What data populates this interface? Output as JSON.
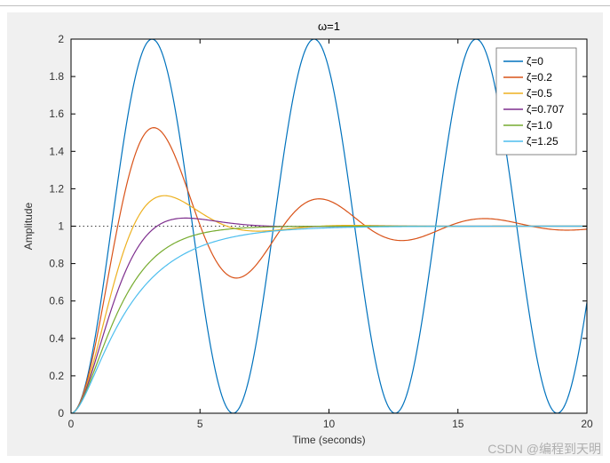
{
  "chart": {
    "type": "line",
    "title": "ω=1",
    "title_fontsize": 13,
    "xlabel": "Time (seconds)",
    "ylabel": "Amplitude",
    "label_fontsize": 12,
    "background_color": "#ffffff",
    "panel_color": "#f0f0f0",
    "axes_color": "#000000",
    "tick_fontsize": 12,
    "xlim": [
      0,
      20
    ],
    "ylim": [
      0,
      2
    ],
    "xticks": [
      0,
      5,
      10,
      15,
      20
    ],
    "yticks": [
      0,
      0.2,
      0.4,
      0.6,
      0.8,
      1,
      1.2,
      1.4,
      1.6,
      1.8,
      2
    ],
    "baseline": {
      "y": 1,
      "style": "dotted",
      "color": "#000000",
      "width": 0.7
    },
    "line_width": 1.2,
    "legend": {
      "position": "upper-right",
      "border_color": "#666666",
      "background": "#ffffff",
      "items": [
        {
          "label": "ζ=0",
          "color": "#0072bd"
        },
        {
          "label": "ζ=0.2",
          "color": "#d95319"
        },
        {
          "label": "ζ=0.5",
          "color": "#edb120"
        },
        {
          "label": "ζ=0.707",
          "color": "#7e2f8e"
        },
        {
          "label": "ζ=1.0",
          "color": "#77ac30"
        },
        {
          "label": "ζ=1.25",
          "color": "#4dbeee"
        }
      ]
    },
    "series": [
      {
        "label": "ζ=0",
        "color": "#0072bd",
        "zeta": 0.0,
        "omega": 1.0
      },
      {
        "label": "ζ=0.2",
        "color": "#d95319",
        "zeta": 0.2,
        "omega": 1.0
      },
      {
        "label": "ζ=0.5",
        "color": "#edb120",
        "zeta": 0.5,
        "omega": 1.0
      },
      {
        "label": "ζ=0.707",
        "color": "#7e2f8e",
        "zeta": 0.707,
        "omega": 1.0
      },
      {
        "label": "ζ=1.0",
        "color": "#77ac30",
        "zeta": 1.0,
        "omega": 1.0
      },
      {
        "label": "ζ=1.25",
        "color": "#4dbeee",
        "zeta": 1.25,
        "omega": 1.0
      }
    ],
    "t_range": [
      0,
      20
    ],
    "t_step": 0.05
  },
  "watermark": "CSDN @编程到天明"
}
